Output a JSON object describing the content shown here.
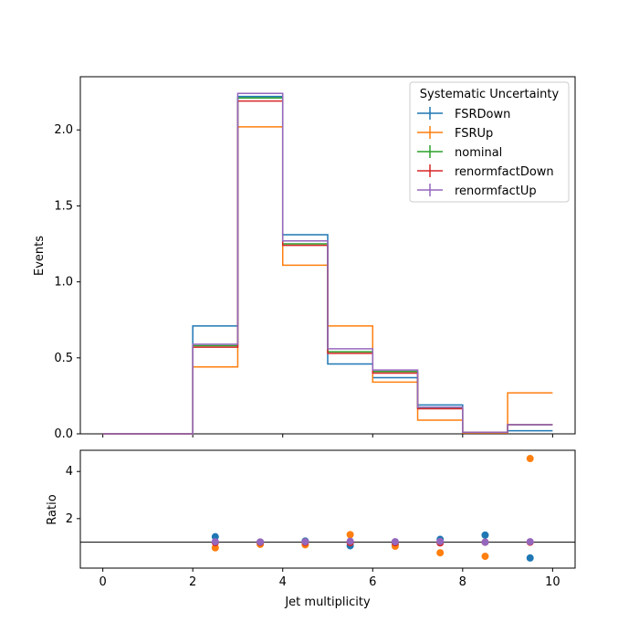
{
  "chart_data": [
    {
      "type": "line",
      "panel": "main",
      "title": "",
      "xlabel": "",
      "ylabel": "Events",
      "xlim": [
        -0.5,
        10.5
      ],
      "ylim": [
        0,
        2.35
      ],
      "xticks": [
        "0",
        "2",
        "4",
        "6",
        "8",
        "10"
      ],
      "yticks": [
        "0.0",
        "0.5",
        "1.0",
        "1.5",
        "2.0"
      ],
      "legend": {
        "title": "Systematic Uncertainty",
        "placement": "top-right"
      },
      "bin_edges": [
        0,
        1,
        2,
        3,
        4,
        5,
        6,
        7,
        8,
        9,
        10
      ],
      "series": [
        {
          "name": "FSRDown",
          "color": "#1f77b4",
          "values": [
            0,
            0,
            0.71,
            2.22,
            1.31,
            0.46,
            0.37,
            0.19,
            0.01,
            0.02
          ]
        },
        {
          "name": "FSRUp",
          "color": "#ff7f0e",
          "values": [
            0,
            0,
            0.44,
            2.02,
            1.11,
            0.71,
            0.34,
            0.09,
            0.005,
            0.27
          ]
        },
        {
          "name": "nominal",
          "color": "#2ca02c",
          "values": [
            0,
            0,
            0.58,
            2.21,
            1.25,
            0.54,
            0.41,
            0.17,
            0.01,
            0.06
          ]
        },
        {
          "name": "renormfactDown",
          "color": "#d62728",
          "values": [
            0,
            0,
            0.57,
            2.19,
            1.24,
            0.53,
            0.4,
            0.165,
            0.01,
            0.06
          ]
        },
        {
          "name": "renormfactUp",
          "color": "#9467bd",
          "values": [
            0,
            0,
            0.59,
            2.24,
            1.27,
            0.56,
            0.42,
            0.175,
            0.01,
            0.06
          ]
        }
      ]
    },
    {
      "type": "scatter",
      "panel": "ratio",
      "title": "",
      "xlabel": "Jet multiplicity",
      "ylabel": "Ratio",
      "xlim": [
        -0.5,
        10.5
      ],
      "ylim": [
        -0.1,
        4.9
      ],
      "xticks": [
        "0",
        "2",
        "4",
        "6",
        "8",
        "10"
      ],
      "yticks": [
        "2",
        "4"
      ],
      "reference_line": 1,
      "x": [
        2.5,
        3.5,
        4.5,
        5.5,
        6.5,
        7.5,
        8.5,
        9.5
      ],
      "series": [
        {
          "name": "FSRDown",
          "color": "#1f77b4",
          "values": [
            1.23,
            1.0,
            1.05,
            0.85,
            0.9,
            1.12,
            1.3,
            0.33
          ]
        },
        {
          "name": "FSRUp",
          "color": "#ff7f0e",
          "values": [
            0.76,
            0.91,
            0.89,
            1.32,
            0.83,
            0.55,
            0.4,
            4.55
          ]
        },
        {
          "name": "renormfactDown",
          "color": "#d62728",
          "values": [
            0.98,
            0.99,
            0.99,
            0.98,
            0.98,
            0.97,
            1.0,
            1.0
          ]
        },
        {
          "name": "renormfactUp",
          "color": "#9467bd",
          "values": [
            1.02,
            1.01,
            1.02,
            1.04,
            1.02,
            1.03,
            1.0,
            1.02
          ]
        }
      ]
    }
  ]
}
